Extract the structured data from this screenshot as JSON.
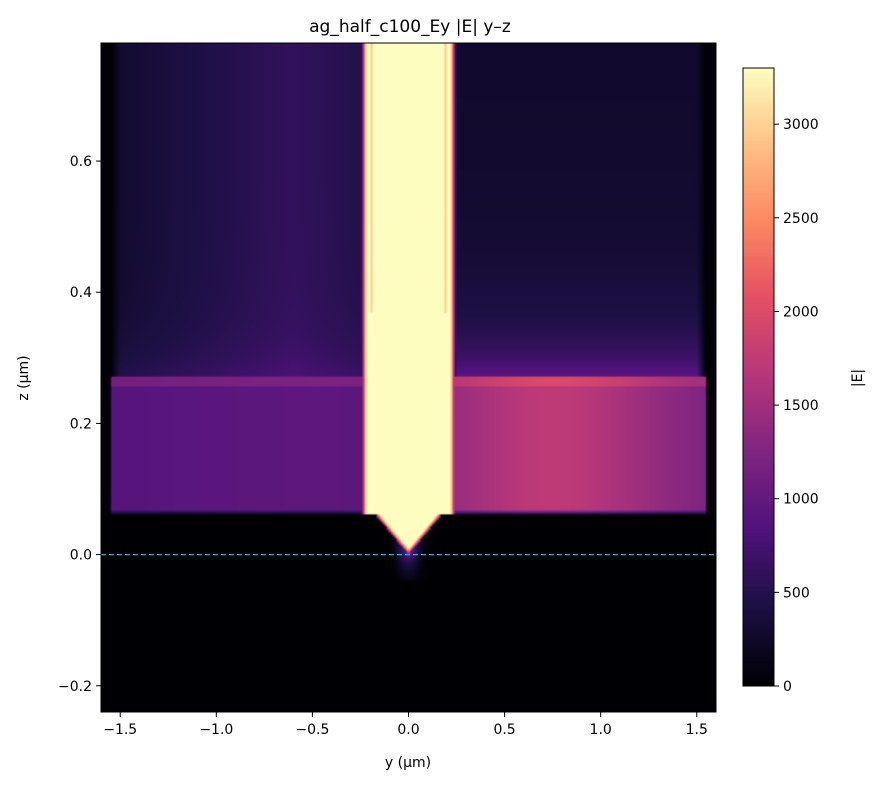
{
  "chart_data": {
    "type": "heatmap",
    "title": "ag_half_c100_Ey |E| y–z",
    "xlabel": "y (µm)",
    "ylabel": "z (µm)",
    "xlim": [
      -1.6,
      1.6
    ],
    "ylim": [
      -0.24,
      0.78
    ],
    "xticks": [
      {
        "v": -1.5,
        "label": "−1.5"
      },
      {
        "v": -1.0,
        "label": "−1.0"
      },
      {
        "v": -0.5,
        "label": "−0.5"
      },
      {
        "v": 0.0,
        "label": "0.0"
      },
      {
        "v": 0.5,
        "label": "0.5"
      },
      {
        "v": 1.0,
        "label": "1.0"
      },
      {
        "v": 1.5,
        "label": "1.5"
      }
    ],
    "yticks": [
      {
        "v": -0.2,
        "label": "−0.2"
      },
      {
        "v": 0.0,
        "label": "0.0"
      },
      {
        "v": 0.2,
        "label": "0.2"
      },
      {
        "v": 0.4,
        "label": "0.4"
      },
      {
        "v": 0.6,
        "label": "0.6"
      }
    ],
    "colorbar": {
      "label": "|E|",
      "colormap": "magma",
      "range": [
        0,
        3300
      ],
      "ticks": [
        {
          "v": 0,
          "label": "0"
        },
        {
          "v": 500,
          "label": "500"
        },
        {
          "v": 1000,
          "label": "1000"
        },
        {
          "v": 1500,
          "label": "1500"
        },
        {
          "v": 2000,
          "label": "2000"
        },
        {
          "v": 2500,
          "label": "2500"
        },
        {
          "v": 3000,
          "label": "3000"
        }
      ]
    },
    "reference_line": {
      "z": 0.0,
      "style": "dashed",
      "color": "#2ab7ca"
    },
    "field_features": {
      "substrate_region_z": [
        -0.24,
        0.0
      ],
      "slab_region": {
        "y": [
          -1.55,
          1.55
        ],
        "z": [
          0.06,
          0.27
        ],
        "value_left": 1000,
        "value_right": 1600
      },
      "upper_region_value": 500,
      "hot_column": {
        "y": [
          -0.22,
          0.22
        ],
        "value": 3300
      },
      "interface_z": 0.27
    }
  }
}
